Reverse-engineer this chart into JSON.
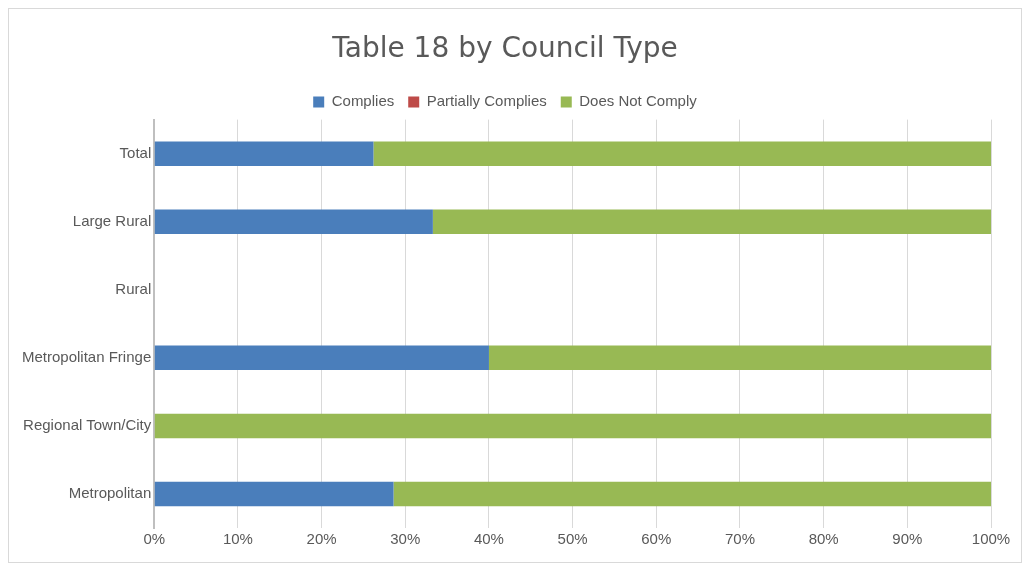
{
  "chart_data": {
    "type": "bar",
    "orientation": "horizontal",
    "stacked": true,
    "title": "Table 18 by Council Type",
    "categories": [
      "Total",
      "Large Rural",
      "Rural",
      "Metropolitan Fringe",
      "Regional Town/City",
      "Metropolitan"
    ],
    "series": [
      {
        "name": "Complies",
        "color": "#4a7ebb",
        "values": [
          26.2,
          33.3,
          null,
          40,
          0,
          28.6
        ]
      },
      {
        "name": "Partially Complies",
        "color": "#be4b48",
        "values": [
          0,
          0,
          null,
          0,
          0,
          0
        ]
      },
      {
        "name": "Does Not Comply",
        "color": "#98b954",
        "values": [
          73.8,
          66.7,
          null,
          60,
          100,
          71.4
        ]
      }
    ],
    "xlim": [
      0,
      100
    ],
    "xticks": [
      {
        "value": 0,
        "label": "0%"
      },
      {
        "value": 10,
        "label": "10%"
      },
      {
        "value": 20,
        "label": "20%"
      },
      {
        "value": 30,
        "label": "30%"
      },
      {
        "value": 40,
        "label": "40%"
      },
      {
        "value": 50,
        "label": "50%"
      },
      {
        "value": 60,
        "label": "60%"
      },
      {
        "value": 70,
        "label": "70%"
      },
      {
        "value": 80,
        "label": "80%"
      },
      {
        "value": 90,
        "label": "90%"
      },
      {
        "value": 100,
        "label": "100%"
      }
    ],
    "grid": "x",
    "legend": "top"
  }
}
